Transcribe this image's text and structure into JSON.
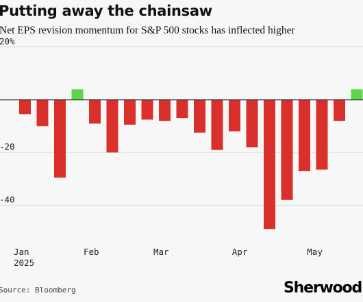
{
  "title": "Putting away the chainsaw",
  "subtitle": "Net EPS revision momentum for S&P 500 stocks has inflected higher",
  "source": "Source: Bloomberg",
  "brand": "Sherwood",
  "colors": {
    "positive": "#5cd64a",
    "negative": "#d9302b",
    "grid": "#dcdcdc",
    "zero": "#333333"
  },
  "chart_data": {
    "type": "bar",
    "title": "Putting away the chainsaw",
    "subtitle": "Net EPS revision momentum for S&P 500 stocks has inflected higher",
    "xlabel": "",
    "ylabel": "",
    "ylim": [
      -55,
      20
    ],
    "yticks": [
      {
        "value": 20,
        "label": "20%"
      },
      {
        "value": -20,
        "label": "-20"
      },
      {
        "value": -40,
        "label": "-40"
      }
    ],
    "xticks": [
      {
        "index": 0,
        "label": "Jan",
        "sublabel": "2025"
      },
      {
        "index": 4,
        "label": "Feb",
        "sublabel": ""
      },
      {
        "index": 8,
        "label": "Mar",
        "sublabel": ""
      },
      {
        "index": 12.5,
        "label": "Apr",
        "sublabel": ""
      },
      {
        "index": 16.8,
        "label": "May",
        "sublabel": ""
      }
    ],
    "values": [
      -5.5,
      -10,
      -29.5,
      4,
      -9,
      -20,
      -9.5,
      -7.5,
      -8,
      -7,
      -12.5,
      -19,
      -12,
      -18,
      -49,
      -38,
      -27,
      -26.5,
      -8,
      4
    ],
    "grid": "horizontal",
    "legend": "none"
  }
}
